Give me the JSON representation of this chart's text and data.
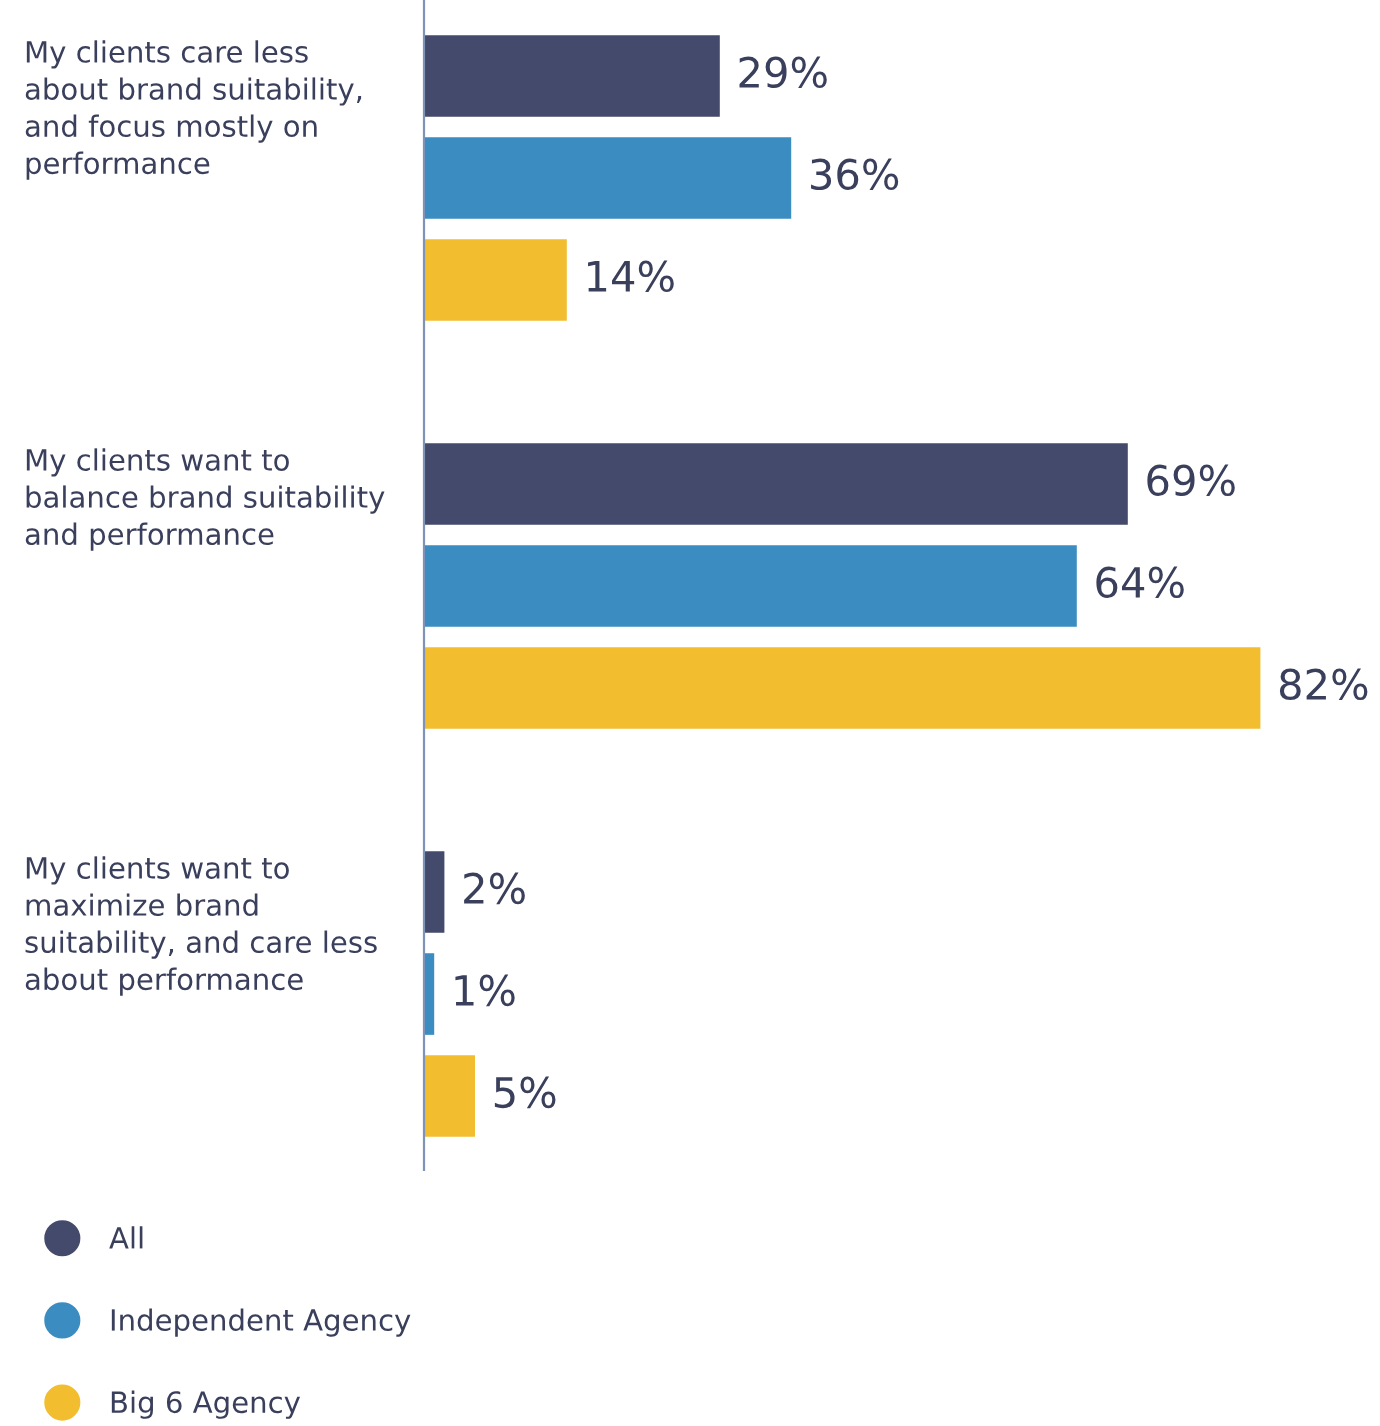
{
  "chart_data": {
    "type": "bar",
    "orientation": "horizontal",
    "categories": [
      "My clients care less\nabout brand suitability,\nand focus mostly on\nperformance",
      "My clients want to\nbalance brand suitability\nand performance",
      "My clients want to\nmaximize brand\nsuitability, and care less\nabout performance"
    ],
    "series": [
      {
        "name": "All",
        "color": "#434a6b",
        "values": [
          29,
          69,
          2
        ],
        "value_labels": [
          "29%",
          "69%",
          "2%"
        ]
      },
      {
        "name": "Independent Agency",
        "color": "#3a8cc1",
        "values": [
          36,
          64,
          1
        ],
        "value_labels": [
          "36%",
          "64%",
          "1%"
        ]
      },
      {
        "name": "Big 6 Agency",
        "color": "#f2bd2f",
        "values": [
          14,
          82,
          5
        ],
        "value_labels": [
          "14%",
          "82%",
          "5%"
        ]
      }
    ],
    "legend": "bottom left"
  }
}
